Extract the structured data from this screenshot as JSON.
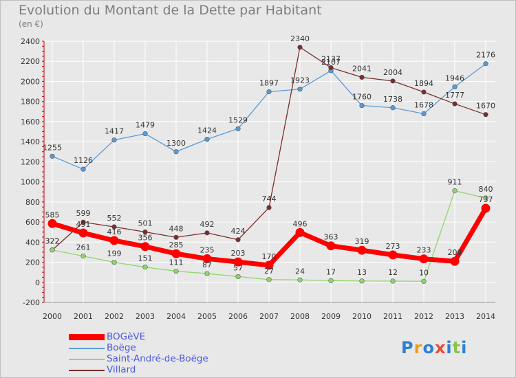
{
  "title": "Evolution du Montant de la Dette par Habitant",
  "unit": "(en €)",
  "logo": {
    "letters": [
      "P",
      "r",
      "o",
      "x",
      "i",
      "t",
      "i"
    ],
    "colors": [
      "#2d7fd1",
      "#f39c12",
      "#2d7fd1",
      "#e74c3c",
      "#2d7fd1",
      "#8bc34a",
      "#2d7fd1"
    ]
  },
  "chart_data": {
    "type": "line",
    "x": [
      "2000",
      "2001",
      "2002",
      "2003",
      "2004",
      "2005",
      "2006",
      "2007",
      "2008",
      "2009",
      "2010",
      "2011",
      "2012",
      "2013",
      "2014"
    ],
    "ylim": [
      -200,
      2400
    ],
    "yticks": [
      -200,
      0,
      200,
      400,
      600,
      800,
      1000,
      1200,
      1400,
      1600,
      1800,
      2000,
      2200,
      2400
    ],
    "grid": true,
    "legend_position": "bottom-left",
    "series": [
      {
        "name": "Boëge",
        "color": "#5b9bd5",
        "values": [
          1255,
          1126,
          1417,
          1479,
          1300,
          1424,
          1529,
          1897,
          1923,
          2107,
          1760,
          1738,
          1678,
          1946,
          2176
        ],
        "labels": [
          "1255",
          "1126",
          "1417",
          "1479",
          "1300",
          "1424",
          "1529",
          "1897",
          "1923",
          "2107",
          "1760",
          "1738",
          "1678",
          "1946",
          "2176"
        ]
      },
      {
        "name": "Villard",
        "color": "#7b2c2c",
        "values": [
          322,
          599,
          552,
          501,
          448,
          492,
          424,
          744,
          2340,
          2137,
          2041,
          2004,
          1894,
          1777,
          1670
        ],
        "labels": [
          "322",
          "599",
          "552",
          "501",
          "448",
          "492",
          "424",
          "744",
          "2340",
          "2137",
          "2041",
          "2004",
          "1894",
          "1777",
          "1670"
        ]
      },
      {
        "name": "Saint-André-de-Boëge",
        "color": "#90d86e",
        "values": [
          322,
          261,
          199,
          151,
          111,
          87,
          57,
          27,
          24,
          17,
          13,
          12,
          10,
          911,
          840
        ],
        "labels": [
          "322",
          "261",
          "199",
          "151",
          "111",
          "87",
          "57",
          "27",
          "24",
          "17",
          "13",
          "12",
          "10",
          "911",
          "840"
        ]
      },
      {
        "name": "BOGèVE",
        "color": "#ff0000",
        "values": [
          585,
          491,
          416,
          356,
          285,
          235,
          203,
          170,
          496,
          363,
          319,
          273,
          233,
          209,
          737
        ],
        "labels": [
          "585",
          "491",
          "416",
          "356",
          "285",
          "235",
          "203",
          "170",
          "496",
          "363",
          "319",
          "273",
          "233",
          "209",
          "737"
        ]
      }
    ],
    "legend": [
      "BOGèVE",
      "Boëge",
      "Saint-André-de-Boëge",
      "Villard"
    ]
  }
}
